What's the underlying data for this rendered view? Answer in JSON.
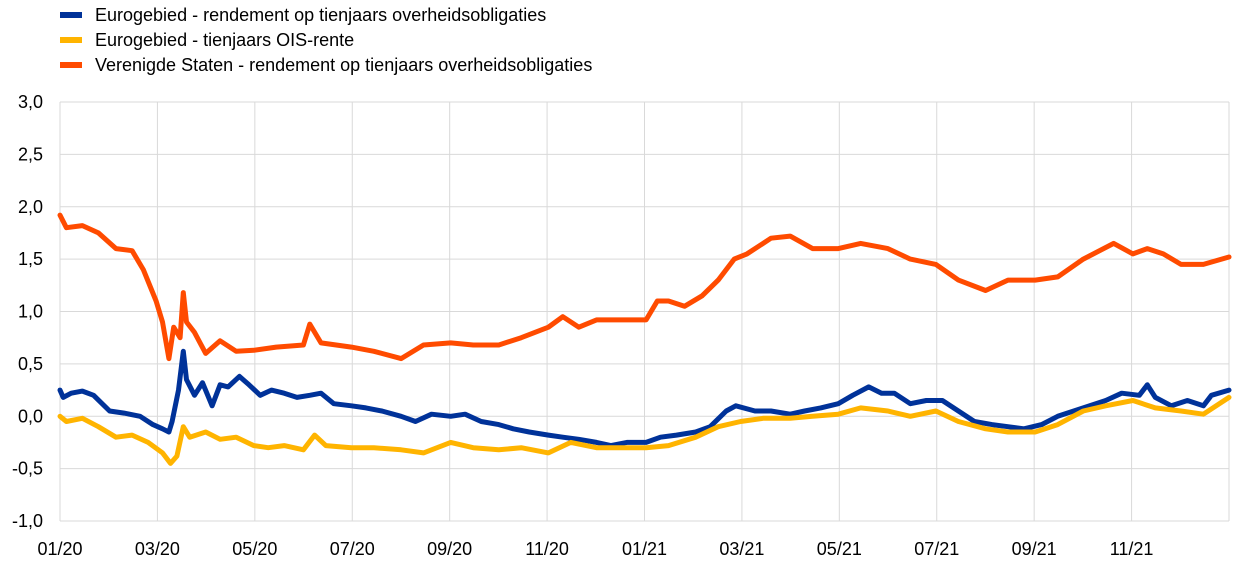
{
  "chart_data": {
    "type": "line",
    "title": "",
    "xlabel": "",
    "ylabel": "",
    "ylim": [
      -1.0,
      3.0
    ],
    "grid": true,
    "legend_position": "top-left",
    "y_ticks": [
      {
        "value": 3.0,
        "label": "3,0"
      },
      {
        "value": 2.5,
        "label": "2,5"
      },
      {
        "value": 2.0,
        "label": "2,0"
      },
      {
        "value": 1.5,
        "label": "1,5"
      },
      {
        "value": 1.0,
        "label": "1,0"
      },
      {
        "value": 0.5,
        "label": "0,5"
      },
      {
        "value": 0.0,
        "label": "0,0"
      },
      {
        "value": -0.5,
        "label": "-0,5"
      },
      {
        "value": -1.0,
        "label": "-1,0"
      }
    ],
    "x_ticks": [
      "01/20",
      "03/20",
      "05/20",
      "07/20",
      "09/20",
      "11/20",
      "01/21",
      "03/21",
      "05/21",
      "07/21",
      "09/21",
      "11/21"
    ],
    "x_range": [
      "2020-01-01",
      "2021-12-31"
    ],
    "series": [
      {
        "name": "Eurogebied - rendement op tienjaars overheidsobligaties",
        "color": "#003299",
        "points": [
          [
            "2020-01-01",
            0.25
          ],
          [
            "2020-01-03",
            0.18
          ],
          [
            "2020-01-08",
            0.22
          ],
          [
            "2020-01-15",
            0.24
          ],
          [
            "2020-01-22",
            0.2
          ],
          [
            "2020-02-01",
            0.05
          ],
          [
            "2020-02-10",
            0.03
          ],
          [
            "2020-02-20",
            0.0
          ],
          [
            "2020-02-28",
            -0.08
          ],
          [
            "2020-03-05",
            -0.12
          ],
          [
            "2020-03-09",
            -0.15
          ],
          [
            "2020-03-11",
            -0.05
          ],
          [
            "2020-03-15",
            0.25
          ],
          [
            "2020-03-18",
            0.62
          ],
          [
            "2020-03-20",
            0.35
          ],
          [
            "2020-03-25",
            0.2
          ],
          [
            "2020-03-30",
            0.32
          ],
          [
            "2020-04-05",
            0.1
          ],
          [
            "2020-04-10",
            0.3
          ],
          [
            "2020-04-15",
            0.28
          ],
          [
            "2020-04-22",
            0.38
          ],
          [
            "2020-04-28",
            0.3
          ],
          [
            "2020-05-05",
            0.2
          ],
          [
            "2020-05-12",
            0.25
          ],
          [
            "2020-05-20",
            0.22
          ],
          [
            "2020-05-28",
            0.18
          ],
          [
            "2020-06-05",
            0.2
          ],
          [
            "2020-06-12",
            0.22
          ],
          [
            "2020-06-20",
            0.12
          ],
          [
            "2020-07-01",
            0.1
          ],
          [
            "2020-07-10",
            0.08
          ],
          [
            "2020-07-20",
            0.05
          ],
          [
            "2020-08-01",
            0.0
          ],
          [
            "2020-08-10",
            -0.05
          ],
          [
            "2020-08-20",
            0.02
          ],
          [
            "2020-09-01",
            0.0
          ],
          [
            "2020-09-10",
            0.02
          ],
          [
            "2020-09-20",
            -0.05
          ],
          [
            "2020-10-01",
            -0.08
          ],
          [
            "2020-10-10",
            -0.12
          ],
          [
            "2020-10-20",
            -0.15
          ],
          [
            "2020-11-01",
            -0.18
          ],
          [
            "2020-11-10",
            -0.2
          ],
          [
            "2020-11-20",
            -0.22
          ],
          [
            "2020-12-01",
            -0.25
          ],
          [
            "2020-12-10",
            -0.28
          ],
          [
            "2020-12-20",
            -0.25
          ],
          [
            "2021-01-01",
            -0.25
          ],
          [
            "2021-01-10",
            -0.2
          ],
          [
            "2021-01-20",
            -0.18
          ],
          [
            "2021-02-01",
            -0.15
          ],
          [
            "2021-02-10",
            -0.1
          ],
          [
            "2021-02-20",
            0.05
          ],
          [
            "2021-02-26",
            0.1
          ],
          [
            "2021-03-10",
            0.05
          ],
          [
            "2021-03-20",
            0.05
          ],
          [
            "2021-04-01",
            0.02
          ],
          [
            "2021-04-10",
            0.05
          ],
          [
            "2021-04-20",
            0.08
          ],
          [
            "2021-05-01",
            0.12
          ],
          [
            "2021-05-10",
            0.2
          ],
          [
            "2021-05-20",
            0.28
          ],
          [
            "2021-05-28",
            0.22
          ],
          [
            "2021-06-05",
            0.22
          ],
          [
            "2021-06-15",
            0.12
          ],
          [
            "2021-06-25",
            0.15
          ],
          [
            "2021-07-05",
            0.15
          ],
          [
            "2021-07-15",
            0.05
          ],
          [
            "2021-07-25",
            -0.05
          ],
          [
            "2021-08-05",
            -0.08
          ],
          [
            "2021-08-15",
            -0.1
          ],
          [
            "2021-08-25",
            -0.12
          ],
          [
            "2021-09-05",
            -0.08
          ],
          [
            "2021-09-15",
            0.0
          ],
          [
            "2021-09-25",
            0.05
          ],
          [
            "2021-10-05",
            0.1
          ],
          [
            "2021-10-15",
            0.15
          ],
          [
            "2021-10-25",
            0.22
          ],
          [
            "2021-11-05",
            0.2
          ],
          [
            "2021-11-10",
            0.3
          ],
          [
            "2021-11-15",
            0.18
          ],
          [
            "2021-11-25",
            0.1
          ],
          [
            "2021-12-05",
            0.15
          ],
          [
            "2021-12-15",
            0.1
          ],
          [
            "2021-12-20",
            0.2
          ],
          [
            "2021-12-31",
            0.25
          ]
        ]
      },
      {
        "name": "Eurogebied - tienjaars OIS-rente",
        "color": "#ffb400",
        "points": [
          [
            "2020-01-01",
            0.0
          ],
          [
            "2020-01-05",
            -0.05
          ],
          [
            "2020-01-15",
            -0.02
          ],
          [
            "2020-01-25",
            -0.1
          ],
          [
            "2020-02-05",
            -0.2
          ],
          [
            "2020-02-15",
            -0.18
          ],
          [
            "2020-02-25",
            -0.25
          ],
          [
            "2020-03-05",
            -0.35
          ],
          [
            "2020-03-10",
            -0.45
          ],
          [
            "2020-03-14",
            -0.38
          ],
          [
            "2020-03-18",
            -0.1
          ],
          [
            "2020-03-22",
            -0.2
          ],
          [
            "2020-04-01",
            -0.15
          ],
          [
            "2020-04-10",
            -0.22
          ],
          [
            "2020-04-20",
            -0.2
          ],
          [
            "2020-05-01",
            -0.28
          ],
          [
            "2020-05-10",
            -0.3
          ],
          [
            "2020-05-20",
            -0.28
          ],
          [
            "2020-06-01",
            -0.32
          ],
          [
            "2020-06-08",
            -0.18
          ],
          [
            "2020-06-15",
            -0.28
          ],
          [
            "2020-07-01",
            -0.3
          ],
          [
            "2020-07-15",
            -0.3
          ],
          [
            "2020-08-01",
            -0.32
          ],
          [
            "2020-08-15",
            -0.35
          ],
          [
            "2020-09-01",
            -0.25
          ],
          [
            "2020-09-15",
            -0.3
          ],
          [
            "2020-10-01",
            -0.32
          ],
          [
            "2020-10-15",
            -0.3
          ],
          [
            "2020-11-01",
            -0.35
          ],
          [
            "2020-11-15",
            -0.25
          ],
          [
            "2020-12-01",
            -0.3
          ],
          [
            "2020-12-15",
            -0.3
          ],
          [
            "2021-01-01",
            -0.3
          ],
          [
            "2021-01-15",
            -0.28
          ],
          [
            "2021-02-01",
            -0.2
          ],
          [
            "2021-02-15",
            -0.1
          ],
          [
            "2021-03-01",
            -0.05
          ],
          [
            "2021-03-15",
            -0.02
          ],
          [
            "2021-04-01",
            -0.02
          ],
          [
            "2021-04-15",
            0.0
          ],
          [
            "2021-05-01",
            0.02
          ],
          [
            "2021-05-15",
            0.08
          ],
          [
            "2021-06-01",
            0.05
          ],
          [
            "2021-06-15",
            0.0
          ],
          [
            "2021-07-01",
            0.05
          ],
          [
            "2021-07-15",
            -0.05
          ],
          [
            "2021-08-01",
            -0.12
          ],
          [
            "2021-08-15",
            -0.15
          ],
          [
            "2021-09-01",
            -0.15
          ],
          [
            "2021-09-15",
            -0.08
          ],
          [
            "2021-10-01",
            0.05
          ],
          [
            "2021-10-15",
            0.1
          ],
          [
            "2021-11-01",
            0.15
          ],
          [
            "2021-11-15",
            0.08
          ],
          [
            "2021-12-01",
            0.05
          ],
          [
            "2021-12-15",
            0.02
          ],
          [
            "2021-12-31",
            0.18
          ]
        ]
      },
      {
        "name": "Verenigde Staten - rendement op tienjaars overheidsobligaties",
        "color": "#ff4b00",
        "points": [
          [
            "2020-01-01",
            1.92
          ],
          [
            "2020-01-05",
            1.8
          ],
          [
            "2020-01-15",
            1.82
          ],
          [
            "2020-01-25",
            1.75
          ],
          [
            "2020-02-05",
            1.6
          ],
          [
            "2020-02-15",
            1.58
          ],
          [
            "2020-02-22",
            1.4
          ],
          [
            "2020-03-01",
            1.1
          ],
          [
            "2020-03-05",
            0.9
          ],
          [
            "2020-03-09",
            0.55
          ],
          [
            "2020-03-12",
            0.85
          ],
          [
            "2020-03-16",
            0.75
          ],
          [
            "2020-03-18",
            1.18
          ],
          [
            "2020-03-20",
            0.9
          ],
          [
            "2020-03-25",
            0.8
          ],
          [
            "2020-04-01",
            0.6
          ],
          [
            "2020-04-10",
            0.72
          ],
          [
            "2020-04-20",
            0.62
          ],
          [
            "2020-05-01",
            0.63
          ],
          [
            "2020-05-15",
            0.66
          ],
          [
            "2020-06-01",
            0.68
          ],
          [
            "2020-06-05",
            0.88
          ],
          [
            "2020-06-12",
            0.7
          ],
          [
            "2020-07-01",
            0.66
          ],
          [
            "2020-07-15",
            0.62
          ],
          [
            "2020-08-01",
            0.55
          ],
          [
            "2020-08-15",
            0.68
          ],
          [
            "2020-09-01",
            0.7
          ],
          [
            "2020-09-15",
            0.68
          ],
          [
            "2020-10-01",
            0.68
          ],
          [
            "2020-10-15",
            0.75
          ],
          [
            "2020-11-01",
            0.85
          ],
          [
            "2020-11-10",
            0.95
          ],
          [
            "2020-11-20",
            0.85
          ],
          [
            "2020-12-01",
            0.92
          ],
          [
            "2020-12-15",
            0.92
          ],
          [
            "2021-01-01",
            0.92
          ],
          [
            "2021-01-08",
            1.1
          ],
          [
            "2021-01-15",
            1.1
          ],
          [
            "2021-01-25",
            1.05
          ],
          [
            "2021-02-05",
            1.15
          ],
          [
            "2021-02-15",
            1.3
          ],
          [
            "2021-02-25",
            1.5
          ],
          [
            "2021-03-05",
            1.55
          ],
          [
            "2021-03-20",
            1.7
          ],
          [
            "2021-04-01",
            1.72
          ],
          [
            "2021-04-15",
            1.6
          ],
          [
            "2021-05-01",
            1.6
          ],
          [
            "2021-05-15",
            1.65
          ],
          [
            "2021-06-01",
            1.6
          ],
          [
            "2021-06-15",
            1.5
          ],
          [
            "2021-07-01",
            1.45
          ],
          [
            "2021-07-15",
            1.3
          ],
          [
            "2021-08-01",
            1.2
          ],
          [
            "2021-08-15",
            1.3
          ],
          [
            "2021-09-01",
            1.3
          ],
          [
            "2021-09-15",
            1.33
          ],
          [
            "2021-10-01",
            1.5
          ],
          [
            "2021-10-20",
            1.65
          ],
          [
            "2021-11-01",
            1.55
          ],
          [
            "2021-11-10",
            1.6
          ],
          [
            "2021-11-20",
            1.55
          ],
          [
            "2021-12-01",
            1.45
          ],
          [
            "2021-12-15",
            1.45
          ],
          [
            "2021-12-31",
            1.52
          ]
        ]
      }
    ]
  }
}
